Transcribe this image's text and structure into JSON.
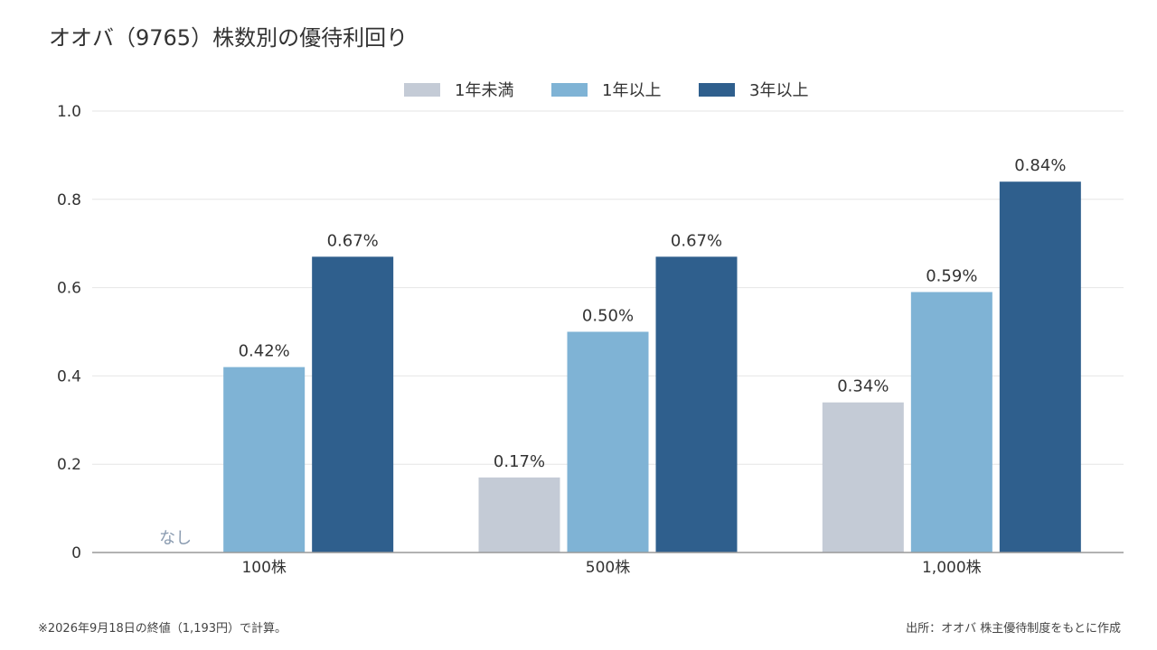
{
  "title": "オオバ（9765）株数別の優待利回り",
  "footnote": "※2026年9月18日の終値（1,193円）で計算。",
  "source": "出所：オオバ 株主優待制度をもとに作成",
  "chart_data": {
    "type": "bar",
    "categories": [
      "100株",
      "500株",
      "1,000株"
    ],
    "series": [
      {
        "name": "1年未満",
        "color": "#c4cbd6",
        "values": [
          null,
          0.17,
          0.34
        ],
        "labels": [
          "なし",
          "0.17%",
          "0.34%"
        ]
      },
      {
        "name": "1年以上",
        "color": "#7fb3d5",
        "values": [
          0.42,
          0.5,
          0.59
        ],
        "labels": [
          "0.42%",
          "0.50%",
          "0.59%"
        ]
      },
      {
        "name": "3年以上",
        "color": "#2f5f8d",
        "values": [
          0.67,
          0.67,
          0.84
        ],
        "labels": [
          "0.67%",
          "0.67%",
          "0.84%"
        ]
      }
    ],
    "ylim": [
      0,
      1.0
    ],
    "yticks": [
      0,
      0.2,
      0.4,
      0.6,
      0.8,
      1.0
    ],
    "ytick_labels": [
      "0",
      "0.2",
      "0.4",
      "0.6",
      "0.8",
      "1.0"
    ],
    "grid": true,
    "legend": "top-center",
    "missing_label_color": "#8a9bb0"
  }
}
